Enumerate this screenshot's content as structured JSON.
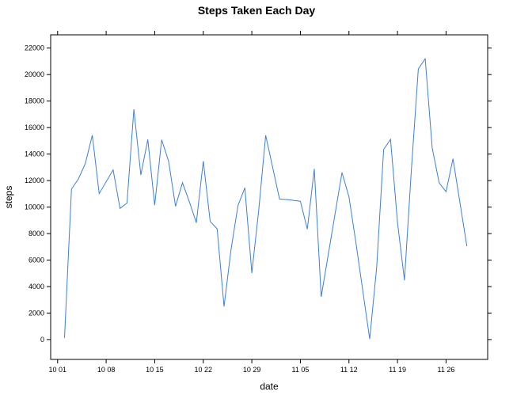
{
  "chart_data": {
    "type": "line",
    "title": "Steps Taken Each Day",
    "xlabel": "date",
    "ylabel": "steps",
    "xlim": [
      "2012-09-30",
      "2012-12-02"
    ],
    "ylim": [
      -1500,
      23000
    ],
    "x_ticks": [
      "2012-10-01",
      "2012-10-08",
      "2012-10-15",
      "2012-10-22",
      "2012-10-29",
      "2012-11-05",
      "2012-11-12",
      "2012-11-19",
      "2012-11-26"
    ],
    "x_tick_labels": [
      "10 01",
      "10 08",
      "10 15",
      "10 22",
      "10 29",
      "11 05",
      "11 12",
      "11 19",
      "11 26"
    ],
    "y_ticks": [
      0,
      2000,
      4000,
      6000,
      8000,
      10000,
      12000,
      14000,
      16000,
      18000,
      20000,
      22000
    ],
    "y_tick_labels": [
      "0",
      "2000",
      "4000",
      "6000",
      "8000",
      "10000",
      "12000",
      "14000",
      "16000",
      "18000",
      "20000",
      "22000"
    ],
    "grid": false,
    "series_color": "#3a7fe0",
    "series": [
      {
        "name": "",
        "x": [
          "2012-10-02",
          "2012-10-03",
          "2012-10-04",
          "2012-10-05",
          "2012-10-06",
          "2012-10-07",
          "2012-10-09",
          "2012-10-10",
          "2012-10-11",
          "2012-10-12",
          "2012-10-13",
          "2012-10-14",
          "2012-10-15",
          "2012-10-16",
          "2012-10-17",
          "2012-10-18",
          "2012-10-19",
          "2012-10-20",
          "2012-10-21",
          "2012-10-22",
          "2012-10-23",
          "2012-10-24",
          "2012-10-25",
          "2012-10-26",
          "2012-10-27",
          "2012-10-28",
          "2012-10-29",
          "2012-10-30",
          "2012-10-31",
          "2012-11-02",
          "2012-11-03",
          "2012-11-05",
          "2012-11-06",
          "2012-11-07",
          "2012-11-08",
          "2012-11-11",
          "2012-11-12",
          "2012-11-13",
          "2012-11-15",
          "2012-11-16",
          "2012-11-17",
          "2012-11-18",
          "2012-11-19",
          "2012-11-20",
          "2012-11-21",
          "2012-11-22",
          "2012-11-23",
          "2012-11-24",
          "2012-11-25",
          "2012-11-26",
          "2012-11-27",
          "2012-11-29"
        ],
        "values": [
          126,
          11352,
          12116,
          13294,
          15420,
          11015,
          12811,
          9900,
          10304,
          17382,
          12426,
          15098,
          10139,
          15084,
          13452,
          10056,
          11829,
          10395,
          8821,
          13460,
          8918,
          8355,
          2492,
          6778,
          10119,
          11458,
          5018,
          9819,
          15414,
          10600,
          10571,
          10439,
          8334,
          12883,
          3219,
          12608,
          10765,
          7336,
          41,
          5441,
          14339,
          15110,
          8841,
          4472,
          12787,
          20427,
          21194,
          14478,
          11834,
          11162,
          13646,
          7047
        ]
      }
    ]
  }
}
